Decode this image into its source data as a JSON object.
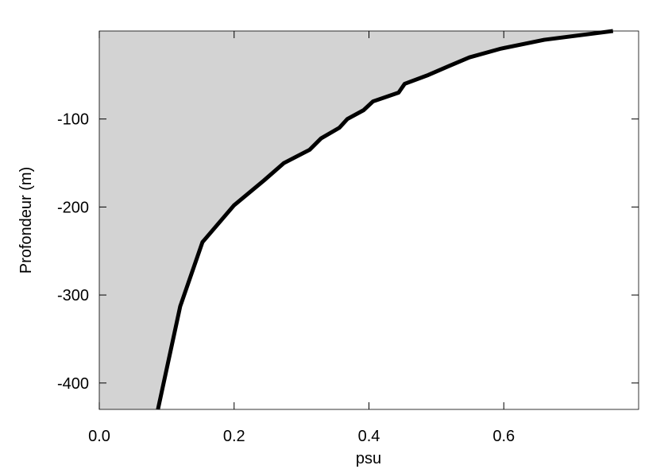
{
  "chart_data": {
    "type": "line",
    "xlabel": "psu",
    "ylabel": "Profondeur (m)",
    "x": [
      0.762,
      0.66,
      0.596,
      0.549,
      0.518,
      0.488,
      0.453,
      0.444,
      0.406,
      0.392,
      0.368,
      0.356,
      0.329,
      0.312,
      0.274,
      0.244,
      0.2,
      0.153,
      0.12,
      0.087
    ],
    "values": [
      0,
      -10,
      -20,
      -30,
      -40,
      -50,
      -60,
      -70,
      -80,
      -90,
      -100,
      -110,
      -122,
      -135,
      -150,
      -170,
      -198,
      -240,
      -313,
      -430
    ],
    "color": "#000000",
    "fill_color": "#d3d3d3",
    "xlim": [
      0,
      0.8
    ],
    "ylim": [
      -430,
      0
    ],
    "xticks": [
      {
        "value": 0,
        "label": "0.0"
      },
      0.2,
      0.4,
      0.6
    ],
    "yticks": [
      -400,
      -300,
      -200,
      -100
    ]
  }
}
